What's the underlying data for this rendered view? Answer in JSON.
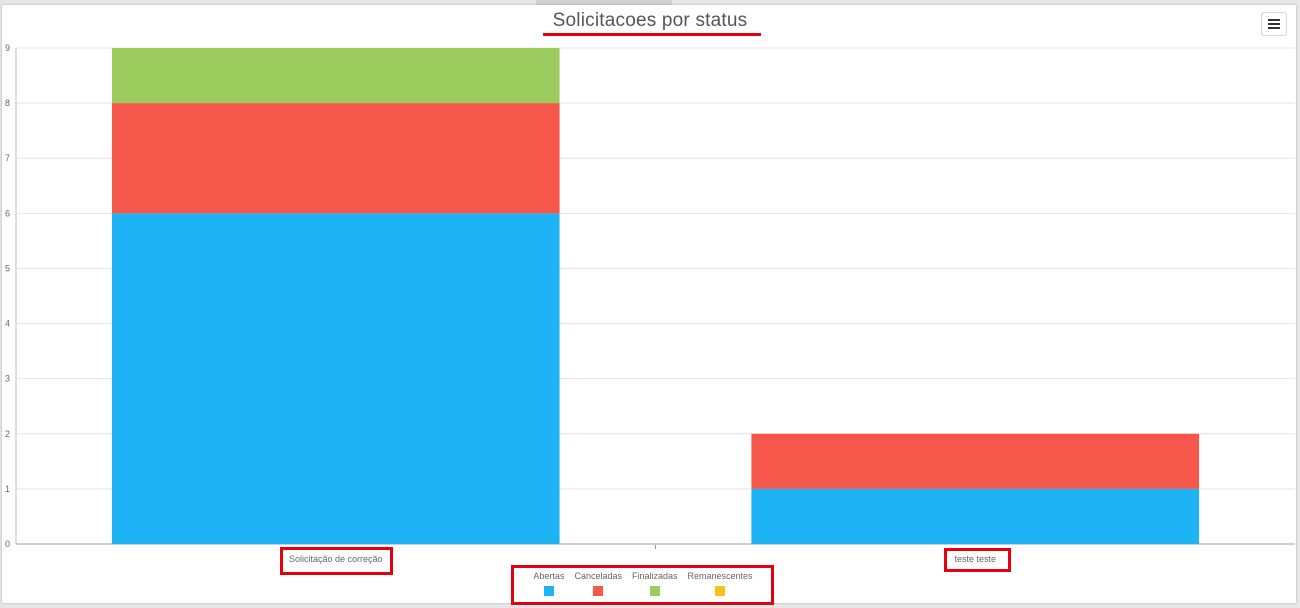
{
  "chart_data": {
    "type": "bar",
    "stacked": true,
    "title": "Solicitacoes por status",
    "categories": [
      "Solicitação de correção",
      "teste teste"
    ],
    "series": [
      {
        "name": "Abertas",
        "values": [
          6,
          1
        ],
        "color": "#1eb3f5"
      },
      {
        "name": "Canceladas",
        "values": [
          2,
          1
        ],
        "color": "#f5584b"
      },
      {
        "name": "Finalizadas",
        "values": [
          1,
          0
        ],
        "color": "#9ccb5e"
      },
      {
        "name": "Remanescentes",
        "values": [
          0,
          0
        ],
        "color": "#f7c21c"
      }
    ],
    "ylim": [
      0,
      9
    ],
    "yticks": [
      "0",
      "1",
      "2",
      "3",
      "4",
      "5",
      "6",
      "7",
      "8",
      "9"
    ],
    "xlabel": "",
    "ylabel": "",
    "grid": true,
    "legend_position": "bottom-center"
  },
  "toolbar": {
    "menu_icon": "hamburger-menu-icon"
  },
  "annotation_color": "#e3000f"
}
